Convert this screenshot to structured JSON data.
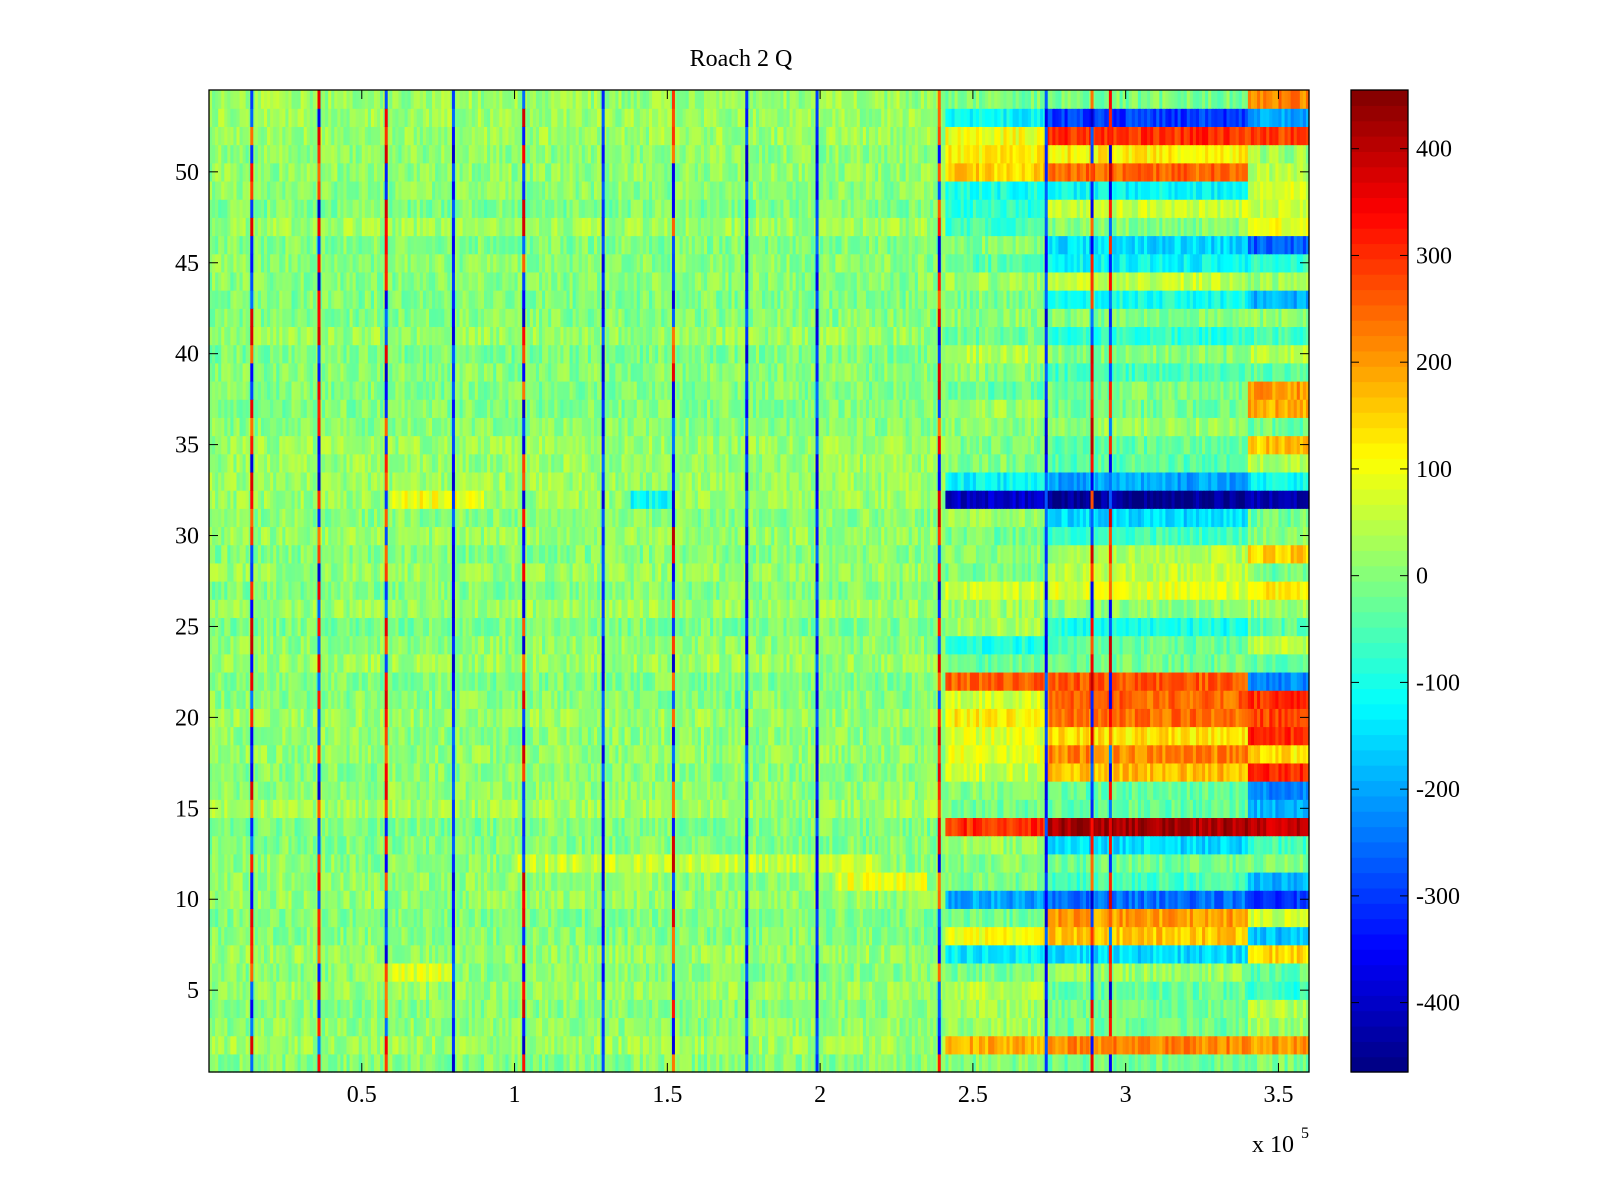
{
  "chart_data": {
    "type": "heatmap",
    "title": "Roach 2 Q",
    "xlabel": "",
    "ylabel": "",
    "x_multiplier_label": {
      "base": "x 10",
      "exponent": "5"
    },
    "xlim": [
      0,
      3.6
    ],
    "ylim": [
      0.5,
      54.5
    ],
    "x_ticks": [
      {
        "value": 0.5,
        "label": "0.5"
      },
      {
        "value": 1.0,
        "label": "1"
      },
      {
        "value": 1.5,
        "label": "1.5"
      },
      {
        "value": 2.0,
        "label": "2"
      },
      {
        "value": 2.5,
        "label": "2.5"
      },
      {
        "value": 3.0,
        "label": "3"
      },
      {
        "value": 3.5,
        "label": "3.5"
      }
    ],
    "y_ticks": [
      {
        "value": 5,
        "label": "5"
      },
      {
        "value": 10,
        "label": "10"
      },
      {
        "value": 15,
        "label": "15"
      },
      {
        "value": 20,
        "label": "20"
      },
      {
        "value": 25,
        "label": "25"
      },
      {
        "value": 30,
        "label": "30"
      },
      {
        "value": 35,
        "label": "35"
      },
      {
        "value": 40,
        "label": "40"
      },
      {
        "value": 45,
        "label": "45"
      },
      {
        "value": 50,
        "label": "50"
      }
    ],
    "colorbar": {
      "colormap": "jet",
      "clim": [
        -465,
        455
      ],
      "ticks": [
        {
          "value": 400,
          "label": "400"
        },
        {
          "value": 300,
          "label": "300"
        },
        {
          "value": 200,
          "label": "200"
        },
        {
          "value": 100,
          "label": "100"
        },
        {
          "value": 0,
          "label": "0"
        },
        {
          "value": -100,
          "label": "-100"
        },
        {
          "value": -200,
          "label": "-200"
        },
        {
          "value": -300,
          "label": "-300"
        },
        {
          "value": -400,
          "label": "-400"
        }
      ]
    },
    "rows": 54,
    "baseline_value": 10,
    "x_segments_boundaries": [
      0,
      2.41,
      2.74,
      3.4,
      3.6
    ],
    "segment_row_values": {
      "rows": [
        1,
        2,
        3,
        4,
        5,
        6,
        7,
        8,
        9,
        10,
        11,
        12,
        13,
        14,
        15,
        16,
        17,
        18,
        19,
        20,
        21,
        22,
        23,
        24,
        25,
        26,
        27,
        28,
        29,
        30,
        31,
        32,
        33,
        34,
        35,
        36,
        37,
        38,
        39,
        40,
        41,
        42,
        43,
        44,
        45,
        46,
        47,
        48,
        49,
        50,
        51,
        52,
        53,
        54
      ],
      "seg_2_41_2_74": [
        0,
        180,
        20,
        30,
        40,
        -10,
        -130,
        100,
        -20,
        -200,
        -10,
        0,
        20,
        300,
        -20,
        0,
        60,
        80,
        80,
        120,
        70,
        250,
        -30,
        -90,
        30,
        20,
        60,
        -10,
        0,
        -20,
        20,
        -400,
        -120,
        0,
        -10,
        10,
        20,
        -30,
        0,
        40,
        -20,
        10,
        -10,
        20,
        -40,
        0,
        -60,
        -80,
        -100,
        150,
        120,
        100,
        -120,
        -10
      ],
      "seg_2_74_3_4": [
        -20,
        220,
        -20,
        -10,
        -30,
        20,
        -150,
        160,
        200,
        -250,
        -60,
        -20,
        -150,
        420,
        -30,
        -30,
        170,
        220,
        130,
        240,
        250,
        260,
        -20,
        -30,
        -100,
        10,
        80,
        50,
        40,
        -60,
        -150,
        -450,
        -200,
        -40,
        -30,
        20,
        -20,
        -10,
        -60,
        0,
        -80,
        0,
        -100,
        60,
        -120,
        -150,
        0,
        60,
        -120,
        250,
        120,
        300,
        -300,
        -10
      ],
      "seg_3_4_3_6": [
        -10,
        200,
        20,
        40,
        -80,
        -30,
        150,
        -180,
        60,
        -300,
        -200,
        0,
        -60,
        400,
        -180,
        -220,
        300,
        130,
        300,
        280,
        300,
        -230,
        -30,
        60,
        -40,
        20,
        120,
        -20,
        150,
        0,
        -20,
        -430,
        -120,
        40,
        160,
        -20,
        180,
        200,
        -30,
        40,
        -60,
        10,
        -190,
        20,
        -80,
        -270,
        90,
        60,
        80,
        40,
        20,
        280,
        -200,
        220
      ]
    },
    "special_columns": [
      {
        "x": 0.14,
        "polarity": "mixed"
      },
      {
        "x": 0.36,
        "polarity": "mixed"
      },
      {
        "x": 0.58,
        "polarity": "mixed"
      },
      {
        "x": 0.8,
        "polarity": "neg"
      },
      {
        "x": 1.03,
        "polarity": "mixed"
      },
      {
        "x": 1.29,
        "polarity": "neg"
      },
      {
        "x": 1.52,
        "polarity": "mixed"
      },
      {
        "x": 1.76,
        "polarity": "neg"
      },
      {
        "x": 1.99,
        "polarity": "neg"
      },
      {
        "x": 2.39,
        "polarity": "mixed"
      },
      {
        "x": 2.74,
        "polarity": "neg"
      },
      {
        "x": 2.89,
        "polarity": "mixed"
      },
      {
        "x": 2.95,
        "polarity": "mixed"
      }
    ],
    "notable_bands": [
      {
        "row": 32,
        "x_from": 0.6,
        "x_to": 0.9,
        "value": 100
      },
      {
        "row": 32,
        "x_from": 1.38,
        "x_to": 1.52,
        "value": -110
      },
      {
        "row": 12,
        "x_from": 1.0,
        "x_to": 2.2,
        "value": 60
      },
      {
        "row": 11,
        "x_from": 2.05,
        "x_to": 2.35,
        "value": 90
      },
      {
        "row": 6,
        "x_from": 0.55,
        "x_to": 0.8,
        "value": 80
      }
    ]
  }
}
